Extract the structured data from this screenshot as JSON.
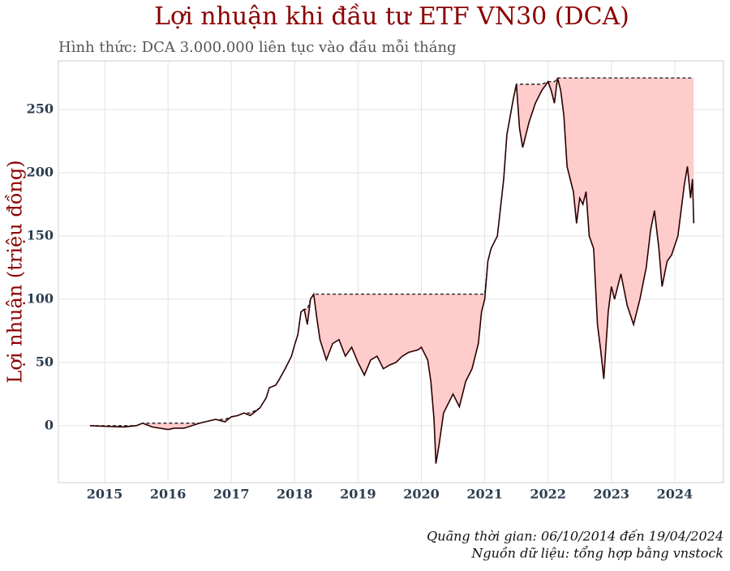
{
  "chart_data": {
    "type": "line",
    "title": "Lợi nhuận khi đầu tư ETF VN30 (DCA)",
    "subtitle": "Hình thức: DCA 3.000.000  liên tục vào đầu mỗi tháng",
    "y_label": "Lợi nhuận (triệu đồng)",
    "caption": [
      "Quãng thời gian: 06/10/2014 đến 19/04/2024",
      "Nguồn dữ liệu: tổng hợp bằng vnstock"
    ],
    "x": [
      2014.77,
      2015.0,
      2015.3,
      2015.5,
      2015.6,
      2015.75,
      2016.0,
      2016.1,
      2016.25,
      2016.5,
      2016.75,
      2016.9,
      2017.0,
      2017.1,
      2017.2,
      2017.3,
      2017.45,
      2017.55,
      2017.6,
      2017.7,
      2017.75,
      2017.85,
      2017.95,
      2018.0,
      2018.05,
      2018.1,
      2018.15,
      2018.2,
      2018.25,
      2018.3,
      2018.35,
      2018.4,
      2018.45,
      2018.5,
      2018.6,
      2018.7,
      2018.8,
      2018.9,
      2019.0,
      2019.1,
      2019.2,
      2019.3,
      2019.4,
      2019.5,
      2019.6,
      2019.7,
      2019.8,
      2019.95,
      2020.0,
      2020.1,
      2020.15,
      2020.2,
      2020.23,
      2020.28,
      2020.35,
      2020.45,
      2020.5,
      2020.6,
      2020.7,
      2020.8,
      2020.9,
      2020.95,
      2021.0,
      2021.05,
      2021.1,
      2021.2,
      2021.3,
      2021.35,
      2021.45,
      2021.5,
      2021.55,
      2021.6,
      2021.7,
      2021.8,
      2021.9,
      2022.0,
      2022.05,
      2022.1,
      2022.15,
      2022.2,
      2022.25,
      2022.3,
      2022.4,
      2022.45,
      2022.5,
      2022.55,
      2022.6,
      2022.65,
      2022.72,
      2022.78,
      2022.83,
      2022.88,
      2022.95,
      2023.0,
      2023.05,
      2023.15,
      2023.25,
      2023.35,
      2023.45,
      2023.55,
      2023.62,
      2023.68,
      2023.75,
      2023.8,
      2023.88,
      2023.95,
      2024.05,
      2024.15,
      2024.2,
      2024.25,
      2024.28,
      2024.3
    ],
    "series": [
      {
        "color": "#2b0000",
        "drawdown_color": "#ffcccc",
        "values": [
          0,
          -0.5,
          -1,
          0,
          2,
          -1,
          -3,
          -2,
          -2,
          2,
          5,
          3,
          7,
          8,
          10,
          8,
          14,
          22,
          30,
          32,
          36,
          45,
          55,
          64,
          72,
          90,
          92,
          80,
          100,
          104,
          85,
          68,
          60,
          52,
          65,
          68,
          55,
          62,
          50,
          40,
          52,
          55,
          45,
          48,
          50,
          55,
          58,
          60,
          62,
          52,
          35,
          5,
          -30,
          -15,
          10,
          20,
          25,
          15,
          35,
          45,
          65,
          90,
          100,
          130,
          140,
          150,
          195,
          230,
          258,
          270,
          235,
          220,
          240,
          255,
          265,
          272,
          265,
          255,
          275,
          265,
          245,
          205,
          185,
          160,
          180,
          175,
          185,
          150,
          140,
          80,
          60,
          37,
          90,
          110,
          100,
          120,
          95,
          80,
          100,
          125,
          155,
          170,
          140,
          110,
          130,
          135,
          150,
          190,
          205,
          180,
          195,
          160
        ]
      }
    ],
    "xlim": [
      2014.27,
      2024.77
    ],
    "ylim": [
      -45,
      288.5
    ],
    "xticks": [
      2015,
      2016,
      2017,
      2018,
      2019,
      2020,
      2021,
      2022,
      2023,
      2024
    ],
    "yticks": [
      0,
      50,
      100,
      150,
      200,
      250
    ],
    "grid": true
  }
}
